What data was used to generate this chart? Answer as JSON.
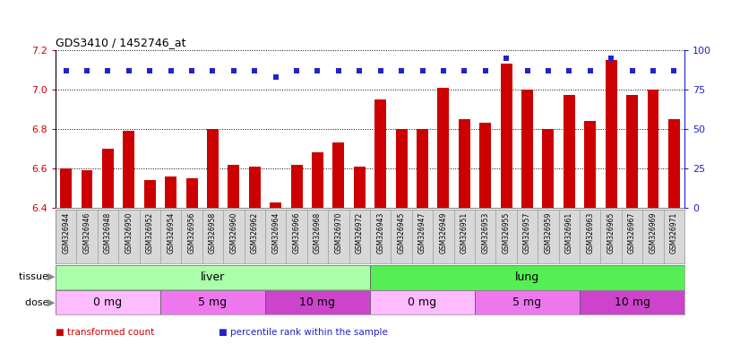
{
  "title": "GDS3410 / 1452746_at",
  "samples": [
    "GSM326944",
    "GSM326946",
    "GSM326948",
    "GSM326950",
    "GSM326952",
    "GSM326954",
    "GSM326956",
    "GSM326958",
    "GSM326960",
    "GSM326962",
    "GSM326964",
    "GSM326966",
    "GSM326968",
    "GSM326970",
    "GSM326972",
    "GSM326943",
    "GSM326945",
    "GSM326947",
    "GSM326949",
    "GSM326951",
    "GSM326953",
    "GSM326955",
    "GSM326957",
    "GSM326959",
    "GSM326961",
    "GSM326963",
    "GSM326965",
    "GSM326967",
    "GSM326969",
    "GSM326971"
  ],
  "bar_values": [
    6.6,
    6.59,
    6.7,
    6.79,
    6.54,
    6.56,
    6.55,
    6.8,
    6.62,
    6.61,
    6.43,
    6.62,
    6.68,
    6.73,
    6.61,
    6.95,
    6.8,
    6.8,
    7.01,
    6.85,
    6.83,
    7.13,
    7.0,
    6.8,
    6.97,
    6.84,
    7.15,
    6.97,
    7.0,
    6.85
  ],
  "percentile_values": [
    87,
    87,
    87,
    87,
    87,
    87,
    87,
    87,
    87,
    87,
    83,
    87,
    87,
    87,
    87,
    87,
    87,
    87,
    87,
    87,
    87,
    95,
    87,
    87,
    87,
    87,
    95,
    87,
    87,
    87
  ],
  "ylim_left": [
    6.4,
    7.2
  ],
  "ylim_right": [
    0,
    100
  ],
  "yticks_left": [
    6.4,
    6.6,
    6.8,
    7.0,
    7.2
  ],
  "yticks_right": [
    0,
    25,
    50,
    75,
    100
  ],
  "bar_color": "#cc0000",
  "dot_color": "#2222cc",
  "bar_bottom": 6.4,
  "tissue_groups": [
    {
      "label": "liver",
      "start": 0,
      "end": 15,
      "color": "#aaffaa"
    },
    {
      "label": "lung",
      "start": 15,
      "end": 30,
      "color": "#55ee55"
    }
  ],
  "dose_groups": [
    {
      "label": "0 mg",
      "start": 0,
      "end": 5,
      "color": "#ffbbff"
    },
    {
      "label": "5 mg",
      "start": 5,
      "end": 10,
      "color": "#ee77ee"
    },
    {
      "label": "10 mg",
      "start": 10,
      "end": 15,
      "color": "#cc44cc"
    },
    {
      "label": "0 mg",
      "start": 15,
      "end": 20,
      "color": "#ffbbff"
    },
    {
      "label": "5 mg",
      "start": 20,
      "end": 25,
      "color": "#ee77ee"
    },
    {
      "label": "10 mg",
      "start": 25,
      "end": 30,
      "color": "#cc44cc"
    }
  ],
  "legend_items": [
    {
      "label": "transformed count",
      "color": "#cc0000"
    },
    {
      "label": "percentile rank within the sample",
      "color": "#2222cc"
    }
  ],
  "chart_bg": "#ffffff",
  "tissue_label": "tissue",
  "dose_label": "dose",
  "tick_label_bg": "#d8d8d8"
}
